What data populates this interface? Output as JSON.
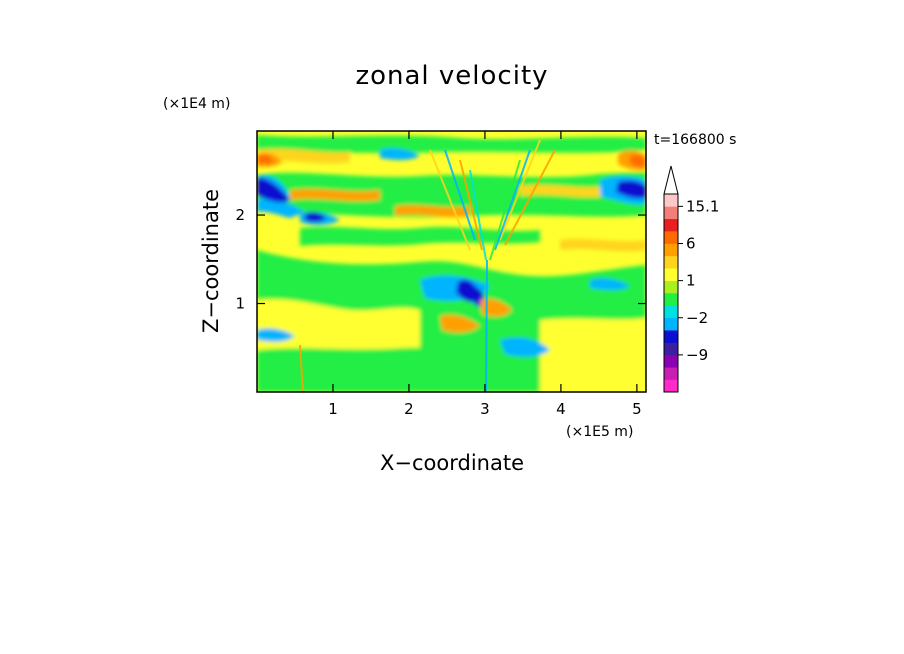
{
  "chart_data": {
    "type": "heatmap",
    "title": "zonal velocity",
    "xlabel": "X−coordinate",
    "ylabel": "Z−coordinate",
    "x_multiplier": "(×1E5 m)",
    "y_multiplier": "(×1E4 m)",
    "time_label": "t=166800 s",
    "xlim": [
      0,
      5.12
    ],
    "ylim": [
      0,
      2.95
    ],
    "x_ticks": [
      "1",
      "2",
      "3",
      "4",
      "5"
    ],
    "x_tick_values": [
      1,
      2,
      3,
      4,
      5
    ],
    "y_ticks": [
      "1",
      "2"
    ],
    "y_tick_values": [
      1,
      2
    ],
    "colorbar": {
      "levels": [
        -14,
        -11,
        -9,
        -6,
        -4,
        -2,
        -1,
        0,
        1,
        2,
        4,
        6,
        9,
        12,
        15.1
      ],
      "tick_labels": [
        "15.1",
        "6",
        "1",
        "−2",
        "−9"
      ],
      "tick_values": [
        15.1,
        6,
        1,
        -2,
        -9
      ],
      "colors": [
        "#ff2ac8",
        "#c81eb4",
        "#8c00b4",
        "#3c1ea0",
        "#0a10d0",
        "#00b4ff",
        "#00e0e0",
        "#22ee44",
        "#aaf020",
        "#ffff30",
        "#ffd41e",
        "#ffa000",
        "#ff6a00",
        "#e82020",
        "#f28078",
        "#ffc8c8"
      ],
      "extend_max": true
    }
  }
}
